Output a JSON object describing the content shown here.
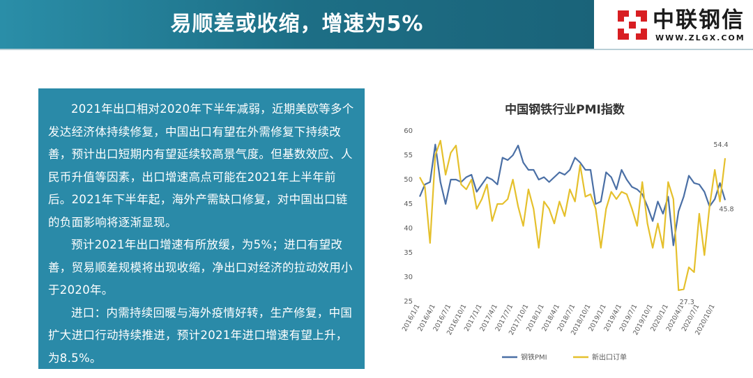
{
  "header": {
    "title": "易顺差或收缩，增速为5%"
  },
  "logo": {
    "name_cn": "中联钢信",
    "url": "WWW.ZLGX.COM",
    "brand_color": "#d81e22"
  },
  "text_panel": {
    "paragraphs": [
      "2021年出口相对2020年下半年减弱，近期美欧等多个发达经济体持续修复，中国出口有望在外需修复下持续改善，预计出口短期内有望延续较高景气度。但基数效应、人民币升值等因素，出口增速高点可能在2021年上半年前后。2021年下半年起，海外产需缺口修复，对中国出口链的负面影响将逐渐显现。",
      "预计2021年出口增速有所放缓，为5%；进口有望改善，贸易顺差规模将出现收缩，净出口对经济的拉动效用小于2020年。",
      "进口：内需持续回暖与海外疫情好转，生产修复，中国扩大进口行动持续推进，预计2021年进口增速有望上升，为8.5%。"
    ]
  },
  "chart_data": {
    "type": "line",
    "title": "中国钢铁行业PMI指数",
    "ylim": [
      25,
      60
    ],
    "yticks": [
      25,
      30,
      35,
      40,
      45,
      50,
      55,
      60
    ],
    "xtick_labels": [
      "2016/1/1",
      "2016/4/1",
      "2016/7/1",
      "2016/10/1",
      "2017/1/1",
      "2017/4/1",
      "2017/7/1",
      "2017/10/1",
      "2018/1/1",
      "2018/4/1",
      "2018/7/1",
      "2018/10/1",
      "2019/1/1",
      "2019/4/1",
      "2019/7/1",
      "2019/10/1",
      "2020/1/1",
      "2020/4/1",
      "2020/7/1",
      "2020/10/1"
    ],
    "legend_position": "bottom",
    "series": [
      {
        "name": "钢铁PMI",
        "color": "#4a6fa5",
        "values": [
          46.5,
          49,
          49.5,
          57.2,
          49.5,
          45,
          50,
          50,
          49.5,
          50.5,
          51,
          47.5,
          49,
          50.5,
          50,
          49,
          54.5,
          54,
          55,
          57,
          53.5,
          52,
          52,
          50,
          50.5,
          49.5,
          50.5,
          51.5,
          51,
          52,
          54.5,
          53.5,
          52,
          52,
          45,
          45.5,
          51.5,
          50.5,
          48,
          52,
          50,
          48.5,
          48,
          47,
          44.5,
          41.5,
          45.5,
          43,
          46.5,
          36.5,
          43.5,
          46.5,
          50.8,
          49.3,
          49,
          47.5,
          44.5,
          46,
          49.3,
          45.8
        ]
      },
      {
        "name": "新出口订单",
        "color": "#e5c02c",
        "values": [
          50.5,
          48.5,
          37,
          55,
          58,
          51,
          55.5,
          57,
          49,
          48,
          50,
          44,
          46,
          49,
          41.5,
          45,
          45,
          46,
          50,
          44.5,
          40.5,
          48,
          44,
          36,
          45.5,
          44,
          41,
          45.5,
          42.5,
          48,
          45.5,
          53,
          46.5,
          47,
          44,
          36,
          44,
          47.5,
          46,
          47.5,
          47,
          44,
          40.5,
          49.5,
          41,
          36,
          41,
          36,
          49.5,
          46,
          27.3,
          27.5,
          32,
          31,
          43,
          34.5,
          44.5,
          52,
          45.5,
          54.4
        ]
      }
    ],
    "data_labels": [
      {
        "series": "钢铁PMI",
        "text": "45.8"
      },
      {
        "series": "新出口订单",
        "text": "54.4"
      },
      {
        "series": "新出口订单",
        "text": "27.3"
      }
    ]
  }
}
